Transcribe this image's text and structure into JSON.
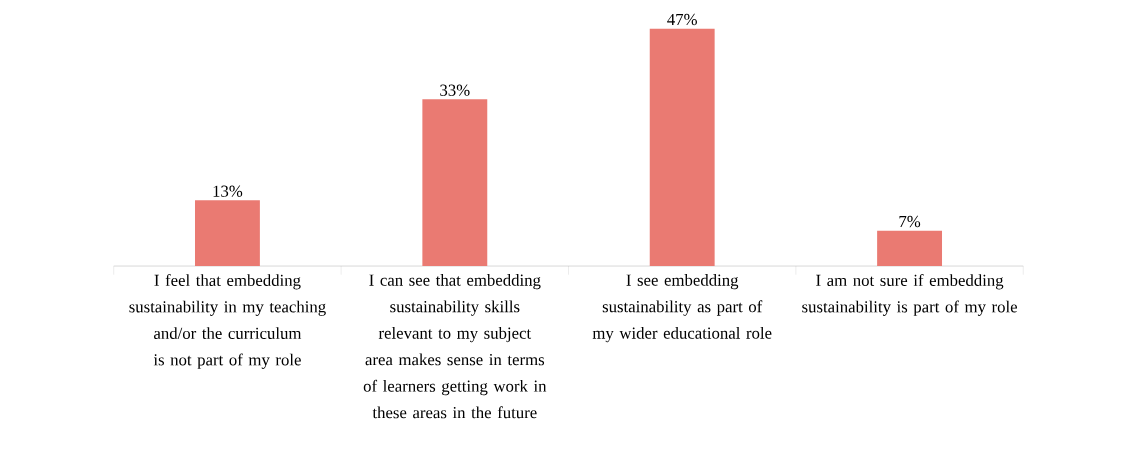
{
  "chart_data": {
    "type": "bar",
    "categories": [
      "I feel that embedding sustainability in my teaching and/or the curriculum is not part of my role",
      "I can see that embedding sustainability skills relevant to my subject area makes sense in terms of learners getting work in these areas in the future",
      "I see embedding sustainability as part of my wider educational role",
      "I am not sure if embedding sustainability is part of my role"
    ],
    "values": [
      13,
      33,
      47,
      7
    ],
    "value_labels": [
      "13%",
      "33%",
      "47%",
      "7%"
    ],
    "color": "#ea7a72"
  }
}
